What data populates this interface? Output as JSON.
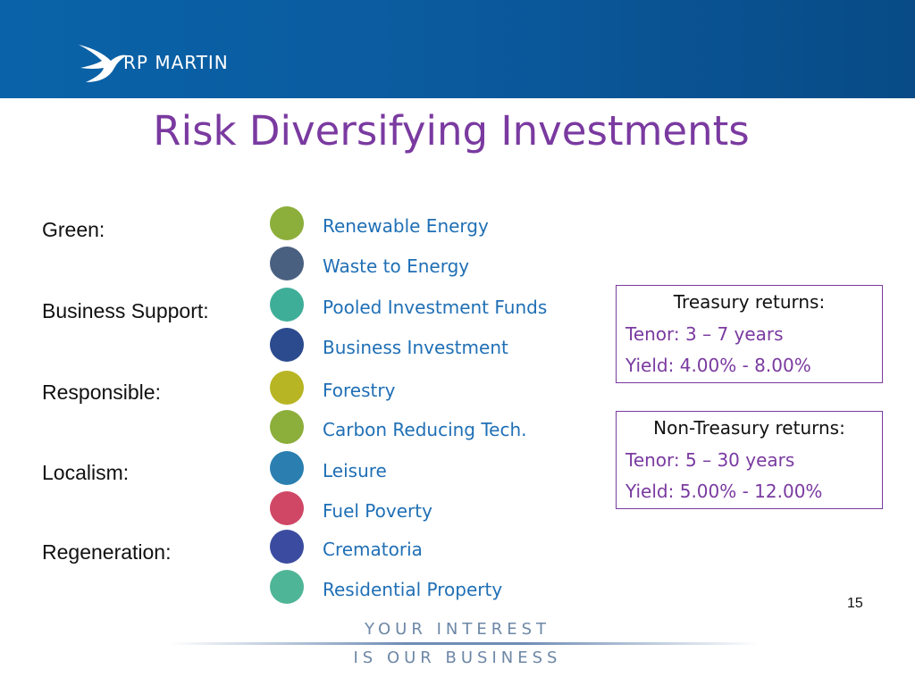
{
  "header": {
    "logo": "RP MARTIN"
  },
  "title": "Risk Diversifying Investments",
  "groups": [
    {
      "label": "Green:",
      "items": [
        "Renewable Energy",
        "Waste to Energy"
      ]
    },
    {
      "label": "Business Support:",
      "items": [
        "Pooled Investment Funds",
        "Business Investment"
      ]
    },
    {
      "label": "Responsible:",
      "items": [
        "Forestry",
        "Carbon Reducing Tech."
      ]
    },
    {
      "label": "Localism:",
      "items": [
        "Leisure",
        "Fuel Poverty"
      ]
    },
    {
      "label": "Regeneration:",
      "items": [
        "Crematoria",
        "Residential Property"
      ]
    }
  ],
  "boxes": [
    {
      "title": "Treasury returns:",
      "lines": [
        "Tenor: 3 – 7 years",
        "Yield:  4.00% - 8.00%"
      ]
    },
    {
      "title": "Non-Treasury returns:",
      "lines": [
        "Tenor: 5 – 30 years",
        "Yield:  5.00% - 12.00%"
      ]
    }
  ],
  "page_number": "15",
  "footer": {
    "line1": "YOUR INTEREST",
    "line2": "IS OUR BUSINESS"
  }
}
